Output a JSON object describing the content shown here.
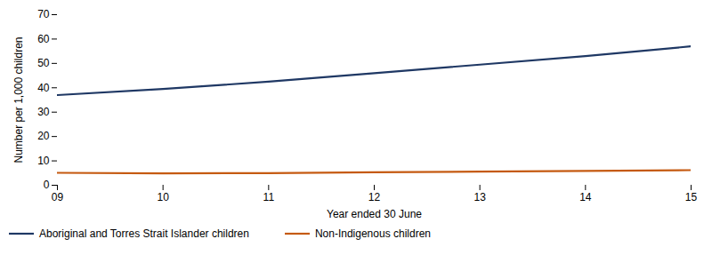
{
  "chart_data": {
    "type": "line",
    "x": [
      9,
      10,
      11,
      12,
      13,
      14,
      15
    ],
    "series": [
      {
        "name": "Aboriginal and Torres Strait Islander children",
        "color": "#1f3864",
        "values": [
          37.0,
          39.5,
          42.5,
          46.0,
          49.5,
          53.0,
          57.0
        ]
      },
      {
        "name": "Non-Indigenous children",
        "color": "#c55a11",
        "values": [
          5.1,
          4.9,
          5.0,
          5.3,
          5.6,
          5.9,
          6.2
        ]
      }
    ],
    "xlabel": "Year ended 30 June",
    "ylabel": "Number per 1,000 children",
    "xlim": [
      9,
      15
    ],
    "xticks": [
      {
        "value": 9,
        "label": "09"
      },
      {
        "value": 10,
        "label": "10"
      },
      {
        "value": 11,
        "label": "11"
      },
      {
        "value": 12,
        "label": "12"
      },
      {
        "value": 13,
        "label": "13"
      },
      {
        "value": 14,
        "label": "14"
      },
      {
        "value": 15,
        "label": "15"
      }
    ],
    "ylim": [
      0,
      70
    ],
    "yticks": [
      0,
      10,
      20,
      30,
      40,
      50,
      60,
      70
    ],
    "grid": false,
    "legend": "bottom"
  }
}
